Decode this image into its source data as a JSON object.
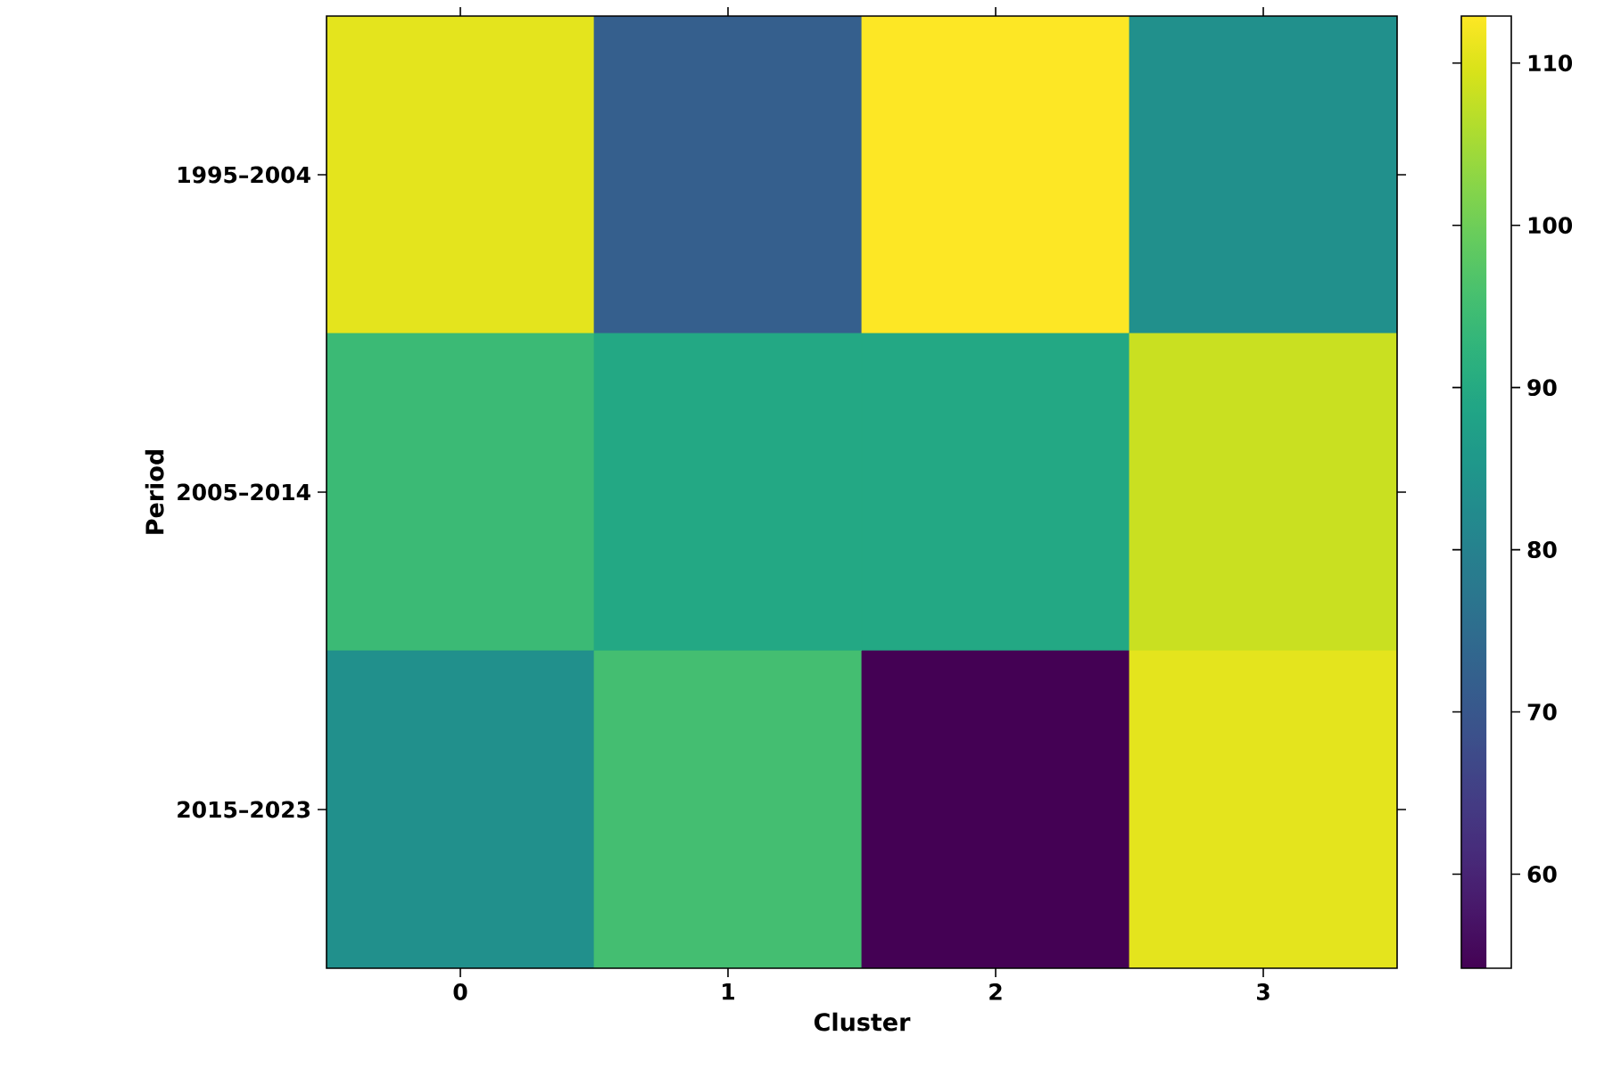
{
  "chart_data": {
    "type": "heatmap",
    "xlabel": "Cluster",
    "ylabel": "Period",
    "categories": [
      "0",
      "1",
      "2",
      "3"
    ],
    "y_categories": [
      "1995–2004",
      "2005–2014",
      "2015–2023"
    ],
    "cells": [
      [
        110.6,
        71.8,
        112.9,
        83.5
      ],
      [
        94.1,
        89.4,
        89.4,
        108.2
      ],
      [
        83.5,
        95.3,
        54.2,
        110.6
      ]
    ],
    "clim": [
      54.2,
      112.9
    ],
    "cticks": [
      60,
      70,
      80,
      90,
      100,
      110
    ]
  }
}
